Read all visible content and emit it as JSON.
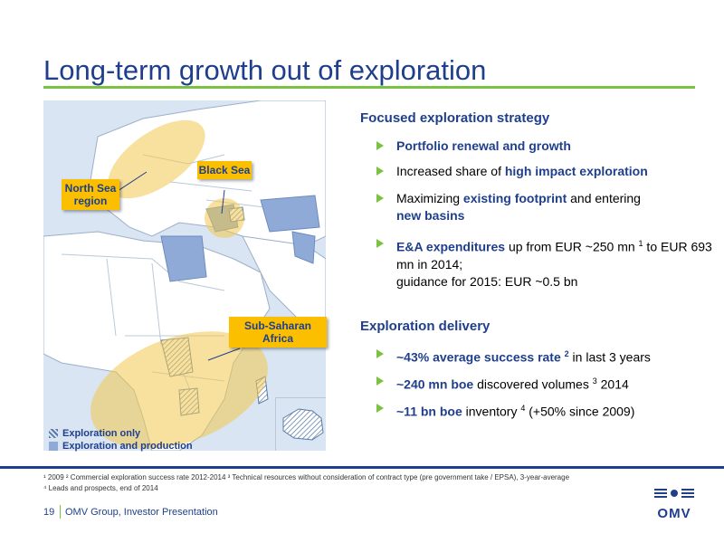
{
  "title": "Long-term growth out of exploration",
  "map": {
    "callouts": {
      "north_sea": "North Sea region",
      "black_sea": "Black Sea",
      "africa": "Sub-Saharan Africa"
    },
    "legend": {
      "exploration_only": "Exploration only",
      "exploration_production": "Exploration and production"
    }
  },
  "section1": {
    "heading": "Focused exploration strategy",
    "b1": "Portfolio renewal and growth",
    "b2_pre": "Increased share of ",
    "b2_hl": "high impact exploration",
    "b3_pre": "Maximizing ",
    "b3_hl1": "existing footprint",
    "b3_mid": " and entering ",
    "b3_hl2": "new basins",
    "b4_hl": "E&A expenditures",
    "b4_a": " up from EUR ~250 mn ",
    "b4_sup": "1",
    "b4_b": " to EUR 693 mn in 2014;",
    "b4_c": "guidance for 2015: EUR ~0.5 bn"
  },
  "section2": {
    "heading": "Exploration delivery",
    "b1_hl": "~43% average success rate ",
    "b1_sup": "2",
    "b1_post": " in last 3 years",
    "b2_hl": "~240 mn boe",
    "b2_mid": " discovered volumes ",
    "b2_sup": "3",
    "b2_post": " 2014",
    "b3_hl": "~11 bn boe",
    "b3_mid": " inventory ",
    "b3_sup": "4",
    "b3_post": " (+50% since 2009)"
  },
  "footnotes": {
    "line1": "¹ 2009   ² Commercial exploration success rate 2012-2014   ³ Technical resources without consideration of contract type (pre government take / EPSA), 3-year-average",
    "line2": "⁴ Leads and prospects, end of 2014"
  },
  "footer": {
    "page": "19",
    "text": "OMV Group, Investor Presentation",
    "logo": "OMV"
  },
  "colors": {
    "brand_blue": "#1f3f8c",
    "accent_green": "#7cc242",
    "highlight_yellow": "#fbbf00"
  }
}
